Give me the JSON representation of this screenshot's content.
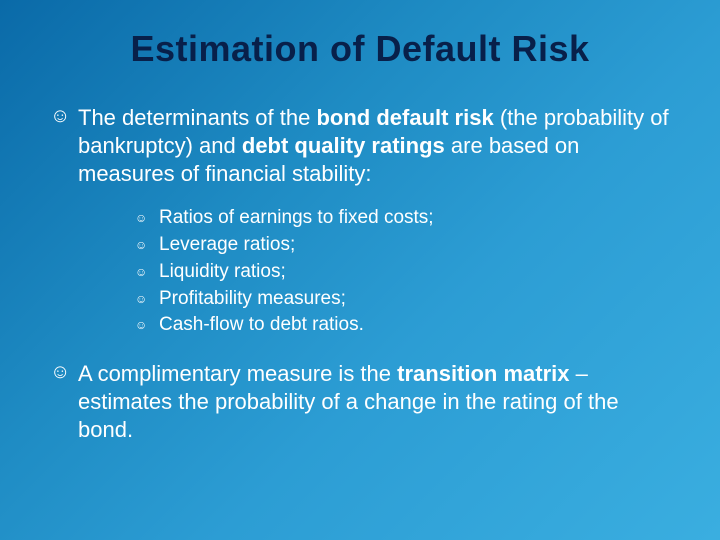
{
  "slide": {
    "title": "Estimation of Default Risk",
    "title_color": "#08204a",
    "title_fontsize": 36,
    "background_gradient": [
      "#0a6aa8",
      "#1e8bc3",
      "#2c9dd4",
      "#3aaee0"
    ],
    "text_color": "#ffffff",
    "body_fontsize": 22,
    "sub_fontsize": 19,
    "bullet_glyph": "☺",
    "point1": {
      "pre": "The determinants of the ",
      "bold1": "bond default risk",
      "mid": " (the probability of bankruptcy) and ",
      "bold2": "debt quality ratings",
      "post": " are based on measures of financial stability:"
    },
    "sub_items": [
      "Ratios of earnings to fixed costs;",
      "Leverage ratios;",
      "Liquidity ratios;",
      "Profitability measures;",
      "Cash-flow to debt ratios."
    ],
    "point2": {
      "pre": "A complimentary measure is the ",
      "bold1": "transition matrix",
      "post": " – estimates the probability of a change in the rating of the bond."
    }
  }
}
